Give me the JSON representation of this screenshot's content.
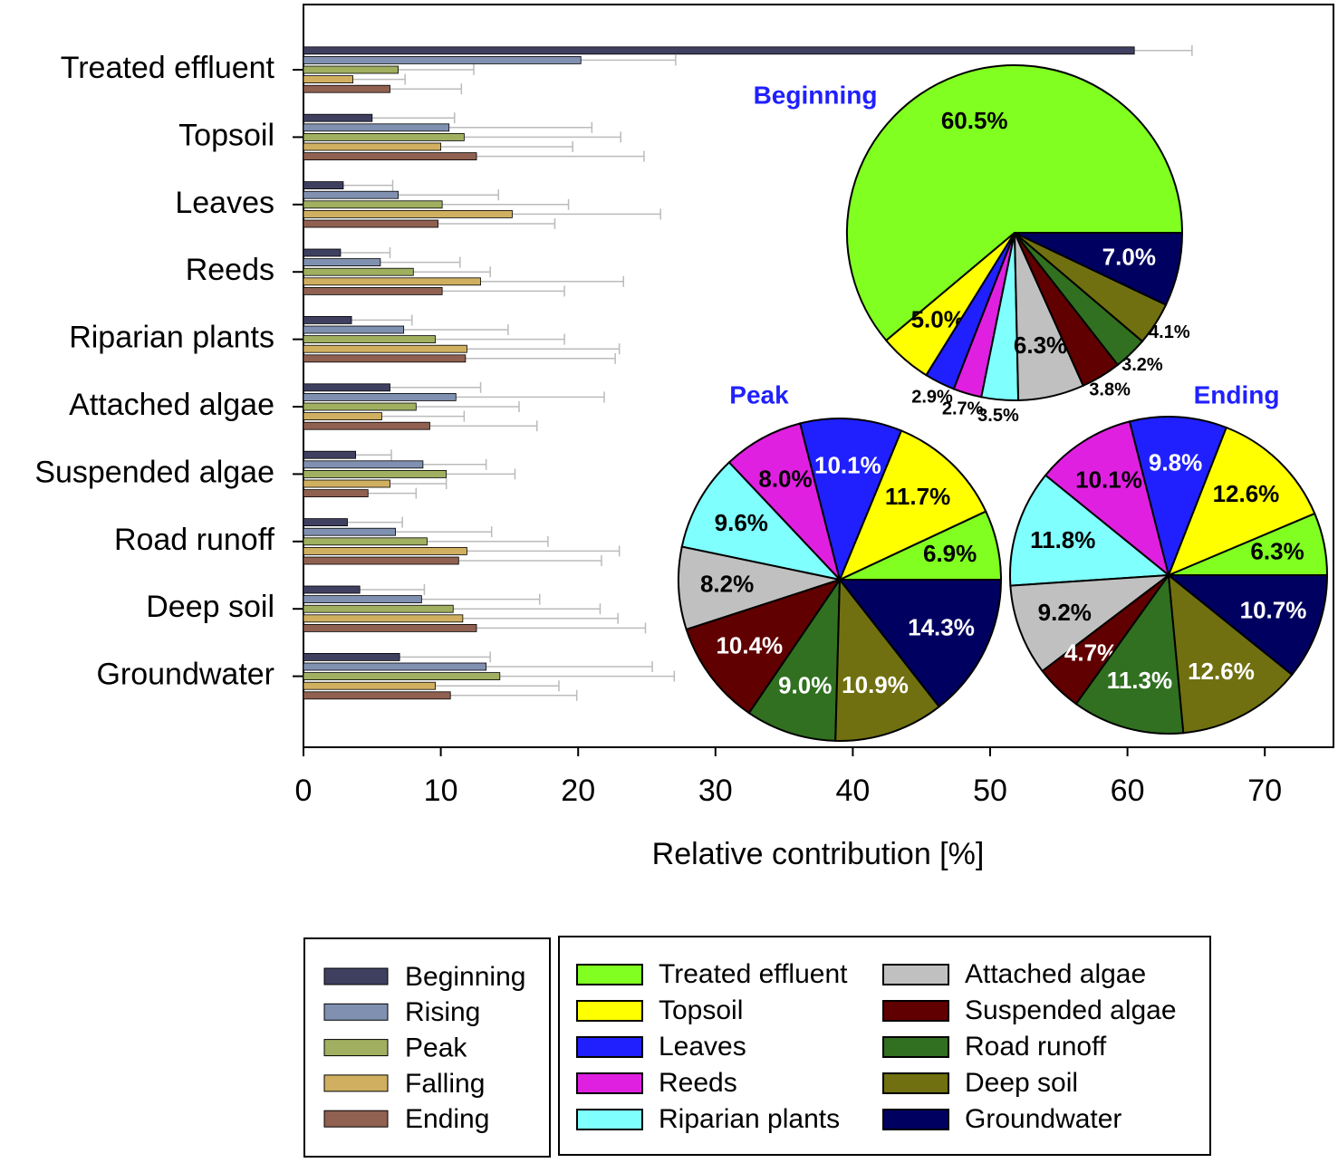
{
  "chart_data": [
    {
      "type": "bar",
      "orientation": "horizontal",
      "xlabel": "Relative contribution [%]",
      "categories": [
        "Treated effluent",
        "Topsoil",
        "Leaves",
        "Reeds",
        "Riparian plants",
        "Attached algae",
        "Suspended algae",
        "Road runoff",
        "Deep soil",
        "Groundwater"
      ],
      "series": [
        {
          "name": "Beginning",
          "color": "#3f4060",
          "values": [
            60.5,
            5.0,
            2.9,
            2.7,
            3.5,
            6.3,
            3.8,
            3.2,
            4.1,
            7.0
          ],
          "errors": [
            4.2,
            6.0,
            3.6,
            3.6,
            4.4,
            6.6,
            2.6,
            4.0,
            4.7,
            6.6
          ]
        },
        {
          "name": "Rising",
          "color": "#8090b0",
          "values": [
            20.2,
            10.6,
            6.9,
            5.6,
            7.3,
            11.1,
            8.7,
            6.7,
            8.6,
            13.3
          ],
          "errors": [
            6.9,
            10.4,
            7.3,
            5.8,
            7.6,
            10.8,
            4.6,
            7.0,
            8.6,
            12.1
          ]
        },
        {
          "name": "Peak",
          "color": "#a0b060",
          "values": [
            6.9,
            11.7,
            10.1,
            8.0,
            9.6,
            8.2,
            10.4,
            9.0,
            10.9,
            14.3
          ],
          "errors": [
            5.5,
            11.4,
            9.2,
            5.6,
            9.4,
            7.5,
            5.0,
            8.8,
            10.7,
            12.7
          ]
        },
        {
          "name": "Falling",
          "color": "#d0b060",
          "values": [
            3.6,
            10.0,
            15.2,
            12.9,
            11.9,
            5.7,
            6.3,
            11.9,
            11.6,
            9.6
          ],
          "errors": [
            3.8,
            9.6,
            10.8,
            10.4,
            11.1,
            6.0,
            4.1,
            11.1,
            11.3,
            9.0
          ]
        },
        {
          "name": "Ending",
          "color": "#906050",
          "values": [
            6.3,
            12.6,
            9.8,
            10.1,
            11.8,
            9.2,
            4.7,
            11.3,
            12.6,
            10.7
          ],
          "errors": [
            5.2,
            12.2,
            8.5,
            8.9,
            10.9,
            7.8,
            3.5,
            10.4,
            12.3,
            9.2
          ]
        }
      ],
      "xlim": [
        0,
        75
      ],
      "xticks": [
        0,
        10,
        20,
        30,
        40,
        50,
        60,
        70
      ]
    },
    {
      "type": "pie",
      "title": "Beginning",
      "values": [
        60.5,
        5.0,
        2.9,
        2.7,
        3.5,
        6.3,
        3.8,
        3.2,
        4.1,
        7.0
      ],
      "value_labels": [
        "60.5%",
        "5.0%",
        "2.9%",
        "2.7%",
        "3.5%",
        "6.3%",
        "3.8%",
        "3.2%",
        "4.1%",
        "7.0%"
      ],
      "colors": [
        "#80ff20",
        "#ffff00",
        "#2020ff",
        "#e020e0",
        "#80ffff",
        "#c0c0c0",
        "#600000",
        "#307020",
        "#707010",
        "#000060"
      ]
    },
    {
      "type": "pie",
      "title": "Peak",
      "values": [
        6.9,
        11.7,
        10.1,
        8.0,
        9.6,
        8.2,
        10.4,
        9.0,
        10.9,
        14.3
      ],
      "value_labels": [
        "6.9%",
        "11.7%",
        "10.1%",
        "8.0%",
        "9.6%",
        "8.2%",
        "10.4%",
        "9.0%",
        "10.9%",
        "14.3%"
      ],
      "colors": [
        "#80ff20",
        "#ffff00",
        "#2020ff",
        "#e020e0",
        "#80ffff",
        "#c0c0c0",
        "#600000",
        "#307020",
        "#707010",
        "#000060"
      ]
    },
    {
      "type": "pie",
      "title": "Ending",
      "values": [
        6.3,
        12.6,
        9.8,
        10.1,
        11.8,
        9.2,
        4.7,
        11.3,
        12.6,
        10.7
      ],
      "value_labels": [
        "6.3%",
        "12.6%",
        "9.8%",
        "10.1%",
        "11.8%",
        "9.2%",
        "4.7%",
        "11.3%",
        "12.6%",
        "10.7%"
      ],
      "colors": [
        "#80ff20",
        "#ffff00",
        "#2020ff",
        "#e020e0",
        "#80ffff",
        "#c0c0c0",
        "#600000",
        "#307020",
        "#707010",
        "#000060"
      ]
    }
  ]
}
